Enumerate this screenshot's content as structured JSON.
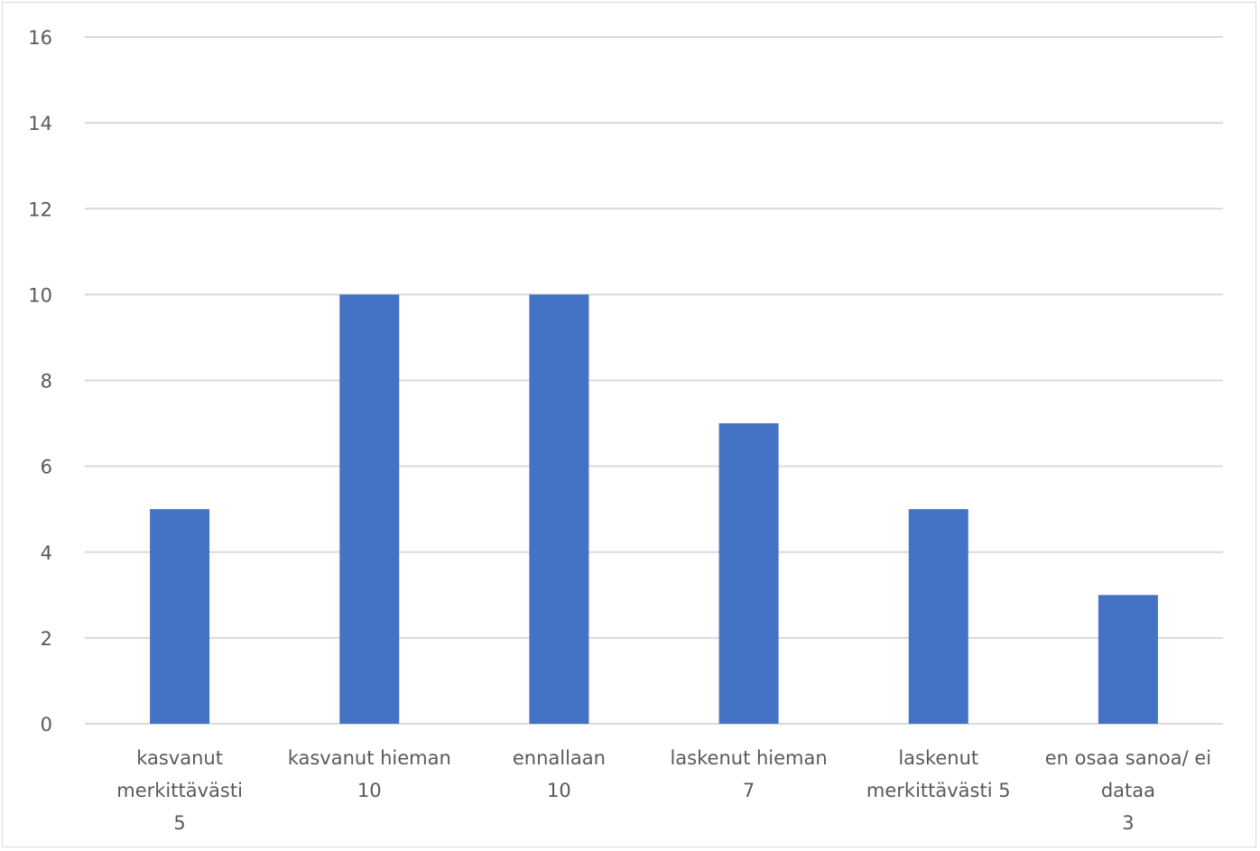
{
  "chart_data": {
    "type": "bar",
    "categories": [
      [
        "kasvanut",
        "merkittävästi",
        "5"
      ],
      [
        "kasvanut hieman",
        "10"
      ],
      [
        "ennallaan",
        "10"
      ],
      [
        "laskenut hieman",
        "7"
      ],
      [
        "laskenut",
        "merkittävästi   5"
      ],
      [
        "en osaa sanoa/ ei",
        "dataa",
        "3"
      ]
    ],
    "values": [
      5,
      10,
      10,
      7,
      5,
      3
    ],
    "ylim": [
      0,
      16
    ],
    "yticks": [
      0,
      2,
      4,
      6,
      8,
      10,
      12,
      14,
      16
    ],
    "title": "",
    "xlabel": "",
    "ylabel": "",
    "grid": true,
    "legend": "none",
    "bar_color": "#4472c4",
    "grid_color": "#d9d9d9"
  }
}
